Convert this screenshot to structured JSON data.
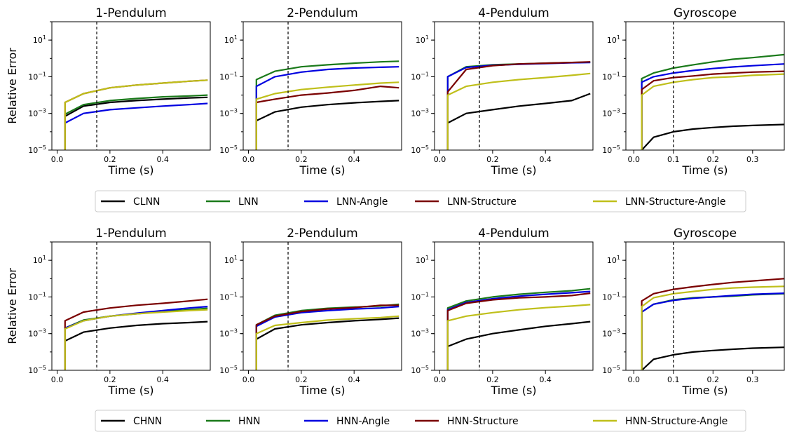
{
  "ylabel": "Relative Error",
  "xlabel": "Time (s)",
  "legends": [
    [
      "CLNN",
      "LNN",
      "LNN-Angle",
      "LNN-Structure",
      "LNN-Structure-Angle"
    ],
    [
      "CHNN",
      "HNN",
      "HNN-Angle",
      "HNN-Structure",
      "HNN-Structure-Angle"
    ]
  ],
  "colors": [
    "#000000",
    "#1a7a1a",
    "#0000e0",
    "#7a0000",
    "#bfbf1a"
  ],
  "chart_data": [
    {
      "type": "line",
      "row": 0,
      "col": 0,
      "title": "1-Pendulum",
      "xlabel": "Time (s)",
      "ylabel": "Relative Error",
      "yscale": "log",
      "xlim": [
        -0.02,
        0.58
      ],
      "ylim": [
        1e-05,
        100
      ],
      "xticks": [
        0.0,
        0.2,
        0.4
      ],
      "vline": 0.15,
      "x": [
        0.03,
        0.1,
        0.2,
        0.3,
        0.4,
        0.5,
        0.57
      ],
      "series": [
        {
          "name": "CLNN",
          "values": [
            0.0007,
            0.0025,
            0.004,
            0.005,
            0.006,
            0.007,
            0.0075
          ]
        },
        {
          "name": "LNN",
          "values": [
            0.0009,
            0.003,
            0.005,
            0.0065,
            0.008,
            0.009,
            0.01
          ]
        },
        {
          "name": "LNN-Angle",
          "values": [
            0.0003,
            0.001,
            0.0016,
            0.002,
            0.0025,
            0.003,
            0.0035
          ]
        },
        {
          "name": "LNN-Structure",
          "values": [
            0.004,
            0.012,
            0.025,
            0.035,
            0.045,
            0.057,
            0.065
          ]
        },
        {
          "name": "LNN-Structure-Angle",
          "values": [
            0.004,
            0.012,
            0.025,
            0.035,
            0.045,
            0.057,
            0.065
          ]
        }
      ]
    },
    {
      "type": "line",
      "row": 0,
      "col": 1,
      "title": "2-Pendulum",
      "xlabel": "Time (s)",
      "yscale": "log",
      "xlim": [
        -0.02,
        0.58
      ],
      "ylim": [
        1e-05,
        100
      ],
      "xticks": [
        0.0,
        0.2,
        0.4
      ],
      "vline": 0.15,
      "x": [
        0.03,
        0.1,
        0.2,
        0.3,
        0.4,
        0.5,
        0.57
      ],
      "series": [
        {
          "name": "CLNN",
          "values": [
            0.0004,
            0.0012,
            0.0022,
            0.003,
            0.0038,
            0.0045,
            0.005
          ]
        },
        {
          "name": "LNN",
          "values": [
            0.07,
            0.2,
            0.35,
            0.45,
            0.55,
            0.65,
            0.7
          ]
        },
        {
          "name": "LNN-Angle",
          "values": [
            0.03,
            0.1,
            0.18,
            0.25,
            0.3,
            0.33,
            0.35
          ]
        },
        {
          "name": "LNN-Structure",
          "values": [
            0.004,
            0.006,
            0.01,
            0.013,
            0.018,
            0.03,
            0.025
          ]
        },
        {
          "name": "LNN-Structure-Angle",
          "values": [
            0.006,
            0.012,
            0.02,
            0.027,
            0.035,
            0.045,
            0.05
          ]
        }
      ]
    },
    {
      "type": "line",
      "row": 0,
      "col": 2,
      "title": "4-Pendulum",
      "xlabel": "Time (s)",
      "yscale": "log",
      "xlim": [
        -0.02,
        0.58
      ],
      "ylim": [
        1e-05,
        100
      ],
      "xticks": [
        0.0,
        0.2,
        0.4
      ],
      "vline": 0.15,
      "x": [
        0.03,
        0.1,
        0.2,
        0.3,
        0.4,
        0.5,
        0.57
      ],
      "series": [
        {
          "name": "CLNN",
          "values": [
            0.0003,
            0.001,
            0.0016,
            0.0025,
            0.0035,
            0.005,
            0.012
          ]
        },
        {
          "name": "LNN",
          "values": [
            0.1,
            0.35,
            0.45,
            0.5,
            0.55,
            0.6,
            0.62
          ]
        },
        {
          "name": "LNN-Angle",
          "values": [
            0.1,
            0.32,
            0.42,
            0.48,
            0.52,
            0.58,
            0.6
          ]
        },
        {
          "name": "LNN-Structure",
          "values": [
            0.015,
            0.25,
            0.4,
            0.5,
            0.55,
            0.6,
            0.65
          ]
        },
        {
          "name": "LNN-Structure-Angle",
          "values": [
            0.01,
            0.03,
            0.05,
            0.07,
            0.09,
            0.12,
            0.15
          ]
        }
      ]
    },
    {
      "type": "line",
      "row": 0,
      "col": 3,
      "title": "Gyroscope",
      "xlabel": "Time (s)",
      "yscale": "log",
      "xlim": [
        -0.02,
        0.38
      ],
      "ylim": [
        1e-05,
        100
      ],
      "xticks": [
        0.0,
        0.1,
        0.2,
        0.3
      ],
      "vline": 0.1,
      "x": [
        0.02,
        0.05,
        0.1,
        0.15,
        0.2,
        0.25,
        0.3,
        0.38
      ],
      "series": [
        {
          "name": "CLNN",
          "values": [
            1e-05,
            5e-05,
            0.0001,
            0.00014,
            0.00017,
            0.0002,
            0.00022,
            0.00025
          ]
        },
        {
          "name": "LNN",
          "values": [
            0.08,
            0.16,
            0.3,
            0.45,
            0.65,
            0.9,
            1.1,
            1.6
          ]
        },
        {
          "name": "LNN-Angle",
          "values": [
            0.05,
            0.1,
            0.16,
            0.22,
            0.28,
            0.34,
            0.4,
            0.5
          ]
        },
        {
          "name": "LNN-Structure",
          "values": [
            0.02,
            0.06,
            0.09,
            0.11,
            0.14,
            0.16,
            0.18,
            0.2
          ]
        },
        {
          "name": "LNN-Structure-Angle",
          "values": [
            0.01,
            0.03,
            0.05,
            0.07,
            0.09,
            0.1,
            0.12,
            0.14
          ]
        }
      ]
    },
    {
      "type": "line",
      "row": 1,
      "col": 0,
      "title": "1-Pendulum",
      "xlabel": "Time (s)",
      "ylabel": "Relative Error",
      "yscale": "log",
      "xlim": [
        -0.02,
        0.58
      ],
      "ylim": [
        1e-05,
        100
      ],
      "xticks": [
        0.0,
        0.2,
        0.4
      ],
      "vline": 0.15,
      "x": [
        0.03,
        0.1,
        0.2,
        0.3,
        0.4,
        0.5,
        0.57
      ],
      "series": [
        {
          "name": "CHNN",
          "values": [
            0.0004,
            0.0012,
            0.002,
            0.0028,
            0.0035,
            0.004,
            0.0045
          ]
        },
        {
          "name": "HNN",
          "values": [
            0.002,
            0.0055,
            0.009,
            0.012,
            0.016,
            0.02,
            0.024
          ]
        },
        {
          "name": "HNN-Angle",
          "values": [
            0.002,
            0.005,
            0.009,
            0.013,
            0.018,
            0.025,
            0.03
          ]
        },
        {
          "name": "HNN-Structure",
          "values": [
            0.005,
            0.015,
            0.025,
            0.035,
            0.045,
            0.06,
            0.075
          ]
        },
        {
          "name": "HNN-Structure-Angle",
          "values": [
            0.0018,
            0.005,
            0.009,
            0.012,
            0.015,
            0.018,
            0.02
          ]
        }
      ]
    },
    {
      "type": "line",
      "row": 1,
      "col": 1,
      "title": "2-Pendulum",
      "xlabel": "Time (s)",
      "yscale": "log",
      "xlim": [
        -0.02,
        0.58
      ],
      "ylim": [
        1e-05,
        100
      ],
      "xticks": [
        0.0,
        0.2,
        0.4
      ],
      "vline": 0.15,
      "x": [
        0.03,
        0.1,
        0.2,
        0.3,
        0.4,
        0.5,
        0.57
      ],
      "series": [
        {
          "name": "CHNN",
          "values": [
            0.0005,
            0.0018,
            0.003,
            0.004,
            0.005,
            0.006,
            0.007
          ]
        },
        {
          "name": "HNN",
          "values": [
            0.003,
            0.01,
            0.018,
            0.024,
            0.028,
            0.032,
            0.04
          ]
        },
        {
          "name": "HNN-Angle",
          "values": [
            0.0025,
            0.008,
            0.014,
            0.018,
            0.022,
            0.025,
            0.03
          ]
        },
        {
          "name": "HNN-Structure",
          "values": [
            0.003,
            0.009,
            0.016,
            0.022,
            0.026,
            0.035,
            0.035
          ]
        },
        {
          "name": "HNN-Structure-Angle",
          "values": [
            0.001,
            0.0028,
            0.004,
            0.0055,
            0.0065,
            0.0075,
            0.009
          ]
        }
      ]
    },
    {
      "type": "line",
      "row": 1,
      "col": 2,
      "title": "4-Pendulum",
      "xlabel": "Time (s)",
      "yscale": "log",
      "xlim": [
        -0.02,
        0.58
      ],
      "ylim": [
        1e-05,
        100
      ],
      "xticks": [
        0.0,
        0.2,
        0.4
      ],
      "vline": 0.15,
      "x": [
        0.03,
        0.1,
        0.2,
        0.3,
        0.4,
        0.5,
        0.57
      ],
      "series": [
        {
          "name": "CHNN",
          "values": [
            0.0002,
            0.0005,
            0.001,
            0.0016,
            0.0025,
            0.0035,
            0.0045
          ]
        },
        {
          "name": "HNN",
          "values": [
            0.025,
            0.06,
            0.1,
            0.14,
            0.18,
            0.22,
            0.28
          ]
        },
        {
          "name": "HNN-Angle",
          "values": [
            0.02,
            0.05,
            0.08,
            0.11,
            0.14,
            0.17,
            0.2
          ]
        },
        {
          "name": "HNN-Structure",
          "values": [
            0.018,
            0.045,
            0.07,
            0.09,
            0.1,
            0.12,
            0.16
          ]
        },
        {
          "name": "HNN-Structure-Angle",
          "values": [
            0.005,
            0.009,
            0.014,
            0.02,
            0.026,
            0.032,
            0.038
          ]
        }
      ]
    },
    {
      "type": "line",
      "row": 1,
      "col": 3,
      "title": "Gyroscope",
      "xlabel": "Time (s)",
      "yscale": "log",
      "xlim": [
        -0.02,
        0.38
      ],
      "ylim": [
        1e-05,
        100
      ],
      "xticks": [
        0.0,
        0.1,
        0.2,
        0.3
      ],
      "vline": 0.1,
      "x": [
        0.02,
        0.05,
        0.1,
        0.15,
        0.2,
        0.25,
        0.3,
        0.38
      ],
      "series": [
        {
          "name": "CHNN",
          "values": [
            1e-05,
            4e-05,
            7e-05,
            0.0001,
            0.00012,
            0.00014,
            0.00016,
            0.00018
          ]
        },
        {
          "name": "HNN",
          "values": [
            0.015,
            0.04,
            0.07,
            0.09,
            0.1,
            0.11,
            0.13,
            0.15
          ]
        },
        {
          "name": "HNN-Angle",
          "values": [
            0.015,
            0.04,
            0.065,
            0.085,
            0.1,
            0.12,
            0.14,
            0.16
          ]
        },
        {
          "name": "HNN-Structure",
          "values": [
            0.06,
            0.15,
            0.26,
            0.36,
            0.48,
            0.62,
            0.75,
            1.0
          ]
        },
        {
          "name": "HNN-Structure-Angle",
          "values": [
            0.03,
            0.09,
            0.15,
            0.2,
            0.26,
            0.31,
            0.34,
            0.38
          ]
        }
      ]
    }
  ]
}
